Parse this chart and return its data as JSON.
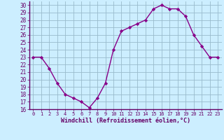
{
  "x": [
    0,
    1,
    2,
    3,
    4,
    5,
    6,
    7,
    8,
    9,
    10,
    11,
    12,
    13,
    14,
    15,
    16,
    17,
    18,
    19,
    20,
    21,
    22,
    23
  ],
  "y": [
    23,
    23,
    21.5,
    19.5,
    18,
    17.5,
    17,
    16.2,
    17.5,
    19.5,
    24,
    26.5,
    27,
    27.5,
    28,
    29.5,
    30,
    29.5,
    29.5,
    28.5,
    26,
    24.5,
    23,
    23
  ],
  "xlim": [
    -0.5,
    23.5
  ],
  "ylim": [
    16,
    30.5
  ],
  "yticks": [
    16,
    17,
    18,
    19,
    20,
    21,
    22,
    23,
    24,
    25,
    26,
    27,
    28,
    29,
    30
  ],
  "xticks": [
    0,
    1,
    2,
    3,
    4,
    5,
    6,
    7,
    8,
    9,
    10,
    11,
    12,
    13,
    14,
    15,
    16,
    17,
    18,
    19,
    20,
    21,
    22,
    23
  ],
  "xlabel": "Windchill (Refroidissement éolien,°C)",
  "line_color": "#880088",
  "marker": "D",
  "marker_size": 2.2,
  "bg_color": "#cceeff",
  "grid_color": "#99bbcc",
  "axis_color": "#660066",
  "label_color": "#660066"
}
